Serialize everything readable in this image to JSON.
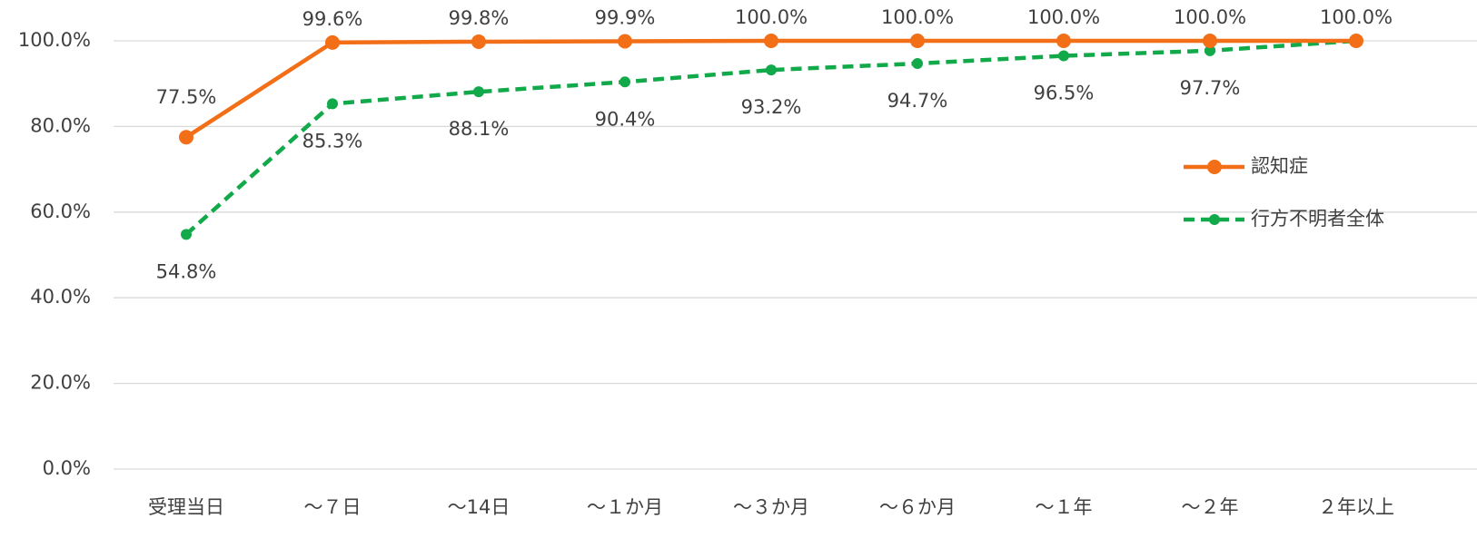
{
  "chart_data": {
    "type": "line",
    "categories": [
      "受理当日",
      "～７日",
      "～14日",
      "～１か月",
      "～３か月",
      "～６か月",
      "～１年",
      "～２年",
      "２年以上"
    ],
    "series": [
      {
        "name": "認知症",
        "color": "#f26e17",
        "dashed": false,
        "values": [
          77.5,
          99.6,
          99.8,
          99.9,
          100.0,
          100.0,
          100.0,
          100.0,
          100.0
        ],
        "value_labels": [
          "77.5%",
          "99.6%",
          "99.8%",
          "99.9%",
          "100.0%",
          "100.0%",
          "100.0%",
          "100.0%",
          "100.0%"
        ]
      },
      {
        "name": "行方不明者全体",
        "color": "#12a94a",
        "dashed": true,
        "values": [
          54.8,
          85.3,
          88.1,
          90.4,
          93.2,
          94.7,
          96.5,
          97.7,
          100.0
        ],
        "value_labels": [
          "54.8%",
          "85.3%",
          "88.1%",
          "90.4%",
          "93.2%",
          "94.7%",
          "96.5%",
          "97.7%",
          null
        ]
      }
    ],
    "ylim": [
      0,
      100
    ],
    "yticks": [
      {
        "value": 0,
        "label": "0.0%"
      },
      {
        "value": 20,
        "label": "20.0%"
      },
      {
        "value": 40,
        "label": "40.0%"
      },
      {
        "value": 60,
        "label": "60.0%"
      },
      {
        "value": 80,
        "label": "80.0%"
      },
      {
        "value": 100,
        "label": "100.0%"
      }
    ],
    "grid": true,
    "legend": "right"
  }
}
